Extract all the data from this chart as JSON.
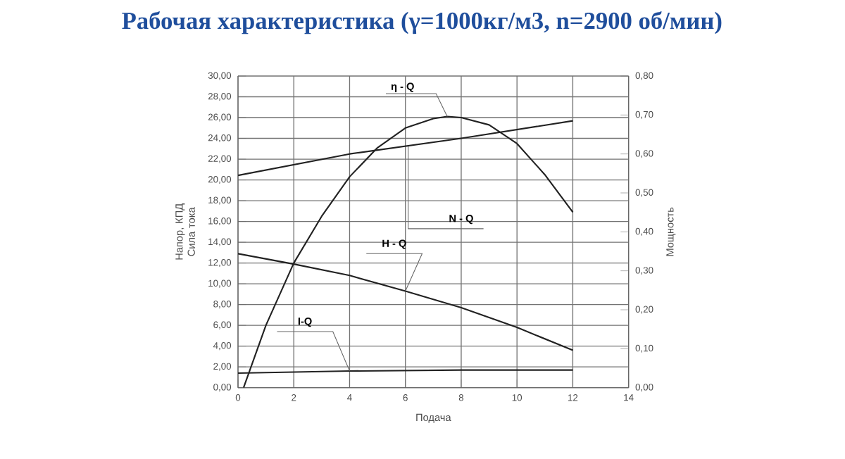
{
  "chart_data": {
    "type": "line",
    "title": "Рабочая характеристика (γ=1000кг/м3, n=2900 об/мин)",
    "xlabel": "Подача",
    "ylabel": "Напор, КПД Сила тока",
    "y2label": "Мощность",
    "xlim": [
      0,
      14
    ],
    "xticks": [
      0,
      2,
      4,
      6,
      8,
      10,
      12,
      14
    ],
    "ylim": [
      0,
      30
    ],
    "yticks": [
      {
        "value": 0,
        "label": "0,00"
      },
      {
        "value": 2,
        "label": "2,00"
      },
      {
        "value": 4,
        "label": "4,00"
      },
      {
        "value": 6,
        "label": "6,00"
      },
      {
        "value": 8,
        "label": "8,00"
      },
      {
        "value": 10,
        "label": "10,00"
      },
      {
        "value": 12,
        "label": "12,00"
      },
      {
        "value": 14,
        "label": "14,00"
      },
      {
        "value": 16,
        "label": "16,00"
      },
      {
        "value": 18,
        "label": "18,00"
      },
      {
        "value": 20,
        "label": "20,00"
      },
      {
        "value": 22,
        "label": "22,00"
      },
      {
        "value": 24,
        "label": "24,00"
      },
      {
        "value": 26,
        "label": "26,00"
      },
      {
        "value": 28,
        "label": "28,00"
      },
      {
        "value": 30,
        "label": "30,00"
      }
    ],
    "y2lim": [
      0,
      0.8
    ],
    "y2ticks": [
      {
        "value": 0,
        "label": "0,00"
      },
      {
        "value": 0.1,
        "label": "0,10"
      },
      {
        "value": 0.2,
        "label": "0,20"
      },
      {
        "value": 0.3,
        "label": "0,30"
      },
      {
        "value": 0.4,
        "label": "0,40"
      },
      {
        "value": 0.5,
        "label": "0,50"
      },
      {
        "value": 0.6,
        "label": "0,60"
      },
      {
        "value": 0.7,
        "label": "0,70"
      },
      {
        "value": 0.8,
        "label": "0,80"
      }
    ],
    "grid": true,
    "marker": "none",
    "line_style": "solid",
    "series": [
      {
        "color": "#222222",
        "x": [
          0.2,
          1,
          2,
          3,
          4,
          5,
          6,
          7,
          7.5,
          8,
          9,
          10,
          11,
          12
        ],
        "values": [
          0,
          6,
          12,
          16.5,
          20.3,
          23.1,
          25,
          25.9,
          26.1,
          26,
          25.3,
          23.5,
          20.5,
          16.9
        ]
      },
      {
        "color": "#222222",
        "axis": "y2",
        "x": [
          0,
          4,
          8,
          12
        ],
        "values": [
          0.545,
          0.6,
          0.64,
          0.685
        ]
      },
      {
        "color": "#222222",
        "x": [
          0,
          2,
          4,
          6,
          8,
          10,
          12
        ],
        "values": [
          12.9,
          11.9,
          10.8,
          9.3,
          7.7,
          5.8,
          3.6
        ]
      },
      {
        "color": "#222222",
        "x": [
          0,
          4,
          8,
          12
        ],
        "values": [
          1.4,
          1.6,
          1.7,
          1.7
        ]
      }
    ],
    "annotations": [
      {
        "text": "η - Q",
        "x": 7.5,
        "y": 26.1
      },
      {
        "text": "N - Q",
        "x": 6.1,
        "y": 23.3
      },
      {
        "text": "H - Q",
        "x": 6,
        "y": 9.3
      },
      {
        "text": "I-Q",
        "x": 4,
        "y": 1.6
      }
    ]
  }
}
